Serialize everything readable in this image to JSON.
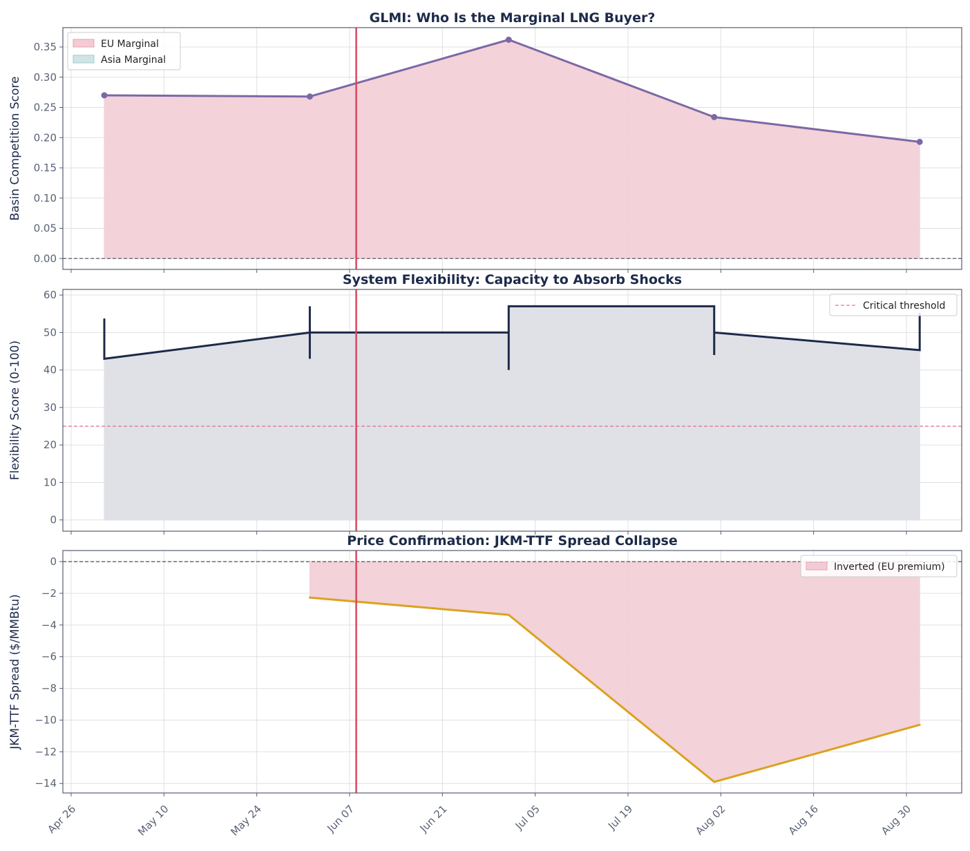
{
  "chart_data": [
    {
      "type": "area",
      "title": "GLMI: Who Is the Marginal LNG Buyer?",
      "ylabel": "Basin Competition Score",
      "ylim": [
        -0.018,
        0.382
      ],
      "yticks": [
        "0.00",
        "0.05",
        "0.10",
        "0.15",
        "0.20",
        "0.25",
        "0.30",
        "0.35"
      ],
      "grid": true,
      "legend": {
        "placement": "top-left",
        "entries": [
          {
            "label": "EU Marginal",
            "color": "#f2ccd4",
            "edge": "#e8a0ae"
          },
          {
            "label": "Asia Marginal",
            "color": "#cfe5e5",
            "edge": "#9fcaca"
          }
        ]
      },
      "hline": {
        "y": 0,
        "style": "dashed",
        "color": "#555d6e"
      },
      "series": [
        {
          "color": "#7b68a6",
          "fill": "#f2d0d7",
          "markers": true,
          "x": [
            "May 01",
            "Jun 01",
            "Jul 01",
            "Aug 01",
            "Sep 01"
          ],
          "y": [
            0.27,
            0.268,
            0.362,
            0.234,
            0.193
          ]
        }
      ]
    },
    {
      "type": "line",
      "title": "System Flexibility: Capacity to Absorb Shocks",
      "ylabel": "Flexibility Score (0-100)",
      "ylim": [
        -3,
        61.5
      ],
      "yticks": [
        "0",
        "10",
        "20",
        "30",
        "40",
        "50",
        "60"
      ],
      "grid": true,
      "legend": {
        "placement": "top-right",
        "entries": [
          {
            "label": "Critical threshold",
            "color": "#e07a8f",
            "style": "dashed"
          }
        ]
      },
      "hline": {
        "y": 25,
        "style": "dashed",
        "color": "#e07a8f"
      },
      "series": [
        {
          "color": "#1c2a4a",
          "fill": "#dedfe5",
          "markers": false,
          "x": [
            "May 01",
            "May 01",
            "Jun 01",
            "Jun 01",
            "Jun 01",
            "Jun 01",
            "Jul 01",
            "Jul 01",
            "Jul 01",
            "Aug 01",
            "Aug 01",
            "Aug 01",
            "Sep 01",
            "Sep 01"
          ],
          "y": [
            53.5,
            43,
            50,
            57,
            43,
            50,
            50,
            40,
            57,
            57,
            44,
            50,
            45.3,
            55
          ]
        }
      ]
    },
    {
      "type": "line",
      "title": "Price Confirmation: JKM-TTF Spread Collapse",
      "ylabel": "JKM-TTF Spread ($/MMBtu)",
      "ylim": [
        -14.6,
        0.7
      ],
      "yticks": [
        "0",
        "−2",
        "−4",
        "−6",
        "−8",
        "−10",
        "−12",
        "−14"
      ],
      "grid": true,
      "legend": {
        "placement": "top-right",
        "entries": [
          {
            "label": "Inverted (EU premium)",
            "color": "#f2ccd4",
            "edge": "#e8a0ae"
          }
        ]
      },
      "hline": {
        "y": 0,
        "style": "dashed",
        "color": "#555d6e"
      },
      "series": [
        {
          "color": "#dba21e",
          "fill": "#f2d0d7",
          "markers": false,
          "x": [
            "Jun 01",
            "Jul 01",
            "Aug 01",
            "Sep 01"
          ],
          "y": [
            -2.27,
            -3.36,
            -13.9,
            -10.3
          ]
        }
      ]
    }
  ],
  "x_axis": {
    "xlim": [
      "Apr 24",
      "Sep 07"
    ],
    "ticks": [
      "Apr 26",
      "May 10",
      "May 24",
      "Jun 07",
      "Jun 21",
      "Jul 05",
      "Jul 19",
      "Aug 02",
      "Aug 16",
      "Aug 30"
    ]
  },
  "event_line": {
    "x": "Jun 08",
    "color": "#d9475f"
  }
}
